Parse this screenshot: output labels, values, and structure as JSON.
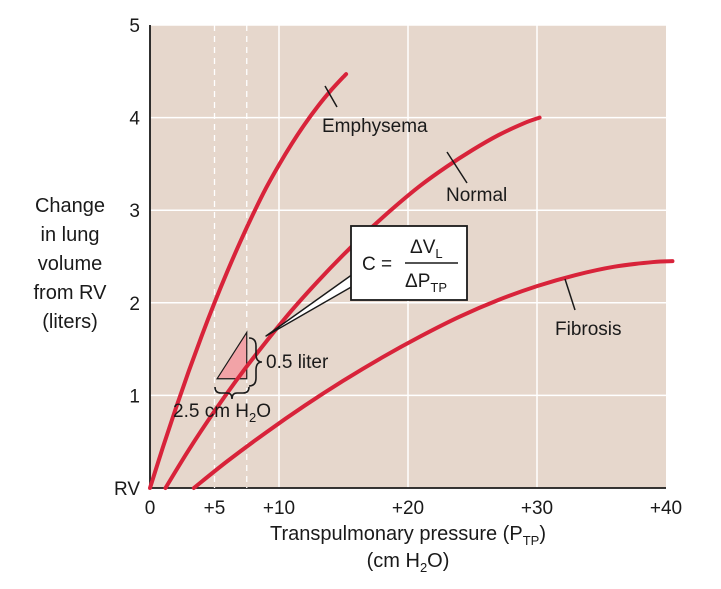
{
  "chart_data": {
    "type": "line",
    "ylabel_lines": [
      "Change",
      "in lung",
      "volume",
      "from RV",
      "(liters)"
    ],
    "xlabel_main": "Transpulmonary pressure (P",
    "xlabel_sub": "TP",
    "xlabel_close": ")",
    "xlabel_unit_pre": "(cm H",
    "xlabel_unit_sub": "2",
    "xlabel_unit_post": "O)",
    "xlim": [
      0,
      40
    ],
    "ylim": [
      0,
      5
    ],
    "x_ticks": [
      {
        "value": 0,
        "label": "0"
      },
      {
        "value": 5,
        "label": "+5"
      },
      {
        "value": 10,
        "label": "+10"
      },
      {
        "value": 20,
        "label": "+20"
      },
      {
        "value": 30,
        "label": "+30"
      },
      {
        "value": 40,
        "label": "+40"
      }
    ],
    "y_ticks": [
      {
        "value": 0,
        "label": "RV"
      },
      {
        "value": 1,
        "label": "1"
      },
      {
        "value": 2,
        "label": "2"
      },
      {
        "value": 3,
        "label": "3"
      },
      {
        "value": 4,
        "label": "4"
      },
      {
        "value": 5,
        "label": "5"
      }
    ],
    "grid": true,
    "plot_bg": "#e6d7cc",
    "grid_color": "#ffffff",
    "curve_color": "#d8233a",
    "series": [
      {
        "name": "Emphysema",
        "x": [
          0,
          1,
          2,
          3,
          4,
          5,
          6,
          7,
          8,
          9,
          10,
          11,
          12,
          13,
          14,
          15.2
        ],
        "y": [
          0,
          0.44,
          0.86,
          1.26,
          1.64,
          2.0,
          2.34,
          2.66,
          2.96,
          3.24,
          3.49,
          3.72,
          3.93,
          4.12,
          4.29,
          4.47
        ]
      },
      {
        "name": "Normal",
        "x": [
          1.2,
          3,
          5,
          7,
          9,
          11,
          13,
          15,
          17,
          19,
          21,
          23,
          25,
          27,
          29,
          30.2
        ],
        "y": [
          0,
          0.41,
          0.83,
          1.22,
          1.58,
          1.92,
          2.23,
          2.52,
          2.79,
          3.04,
          3.27,
          3.47,
          3.65,
          3.81,
          3.94,
          4.0
        ]
      },
      {
        "name": "Fibrosis",
        "x": [
          3.4,
          6,
          9,
          12,
          15,
          18,
          21,
          24,
          27,
          30,
          33,
          36,
          39,
          40.5
        ],
        "y": [
          0,
          0.29,
          0.6,
          0.89,
          1.16,
          1.41,
          1.64,
          1.85,
          2.03,
          2.18,
          2.3,
          2.39,
          2.44,
          2.45
        ]
      }
    ],
    "reference_lines_x": [
      5,
      7.5
    ],
    "compliance_triangle": {
      "x0": 5.2,
      "x1": 7.5,
      "y0": 1.18,
      "y1": 1.68
    },
    "annotations": {
      "volume_step": "0.5 liter",
      "pressure_step_pre": "2.5 cm H",
      "pressure_step_sub": "2",
      "pressure_step_post": "O",
      "formula_lhs": "C =",
      "formula_num": "ΔV",
      "formula_num_sub": "L",
      "formula_den": "ΔP",
      "formula_den_sub": "TP"
    }
  }
}
